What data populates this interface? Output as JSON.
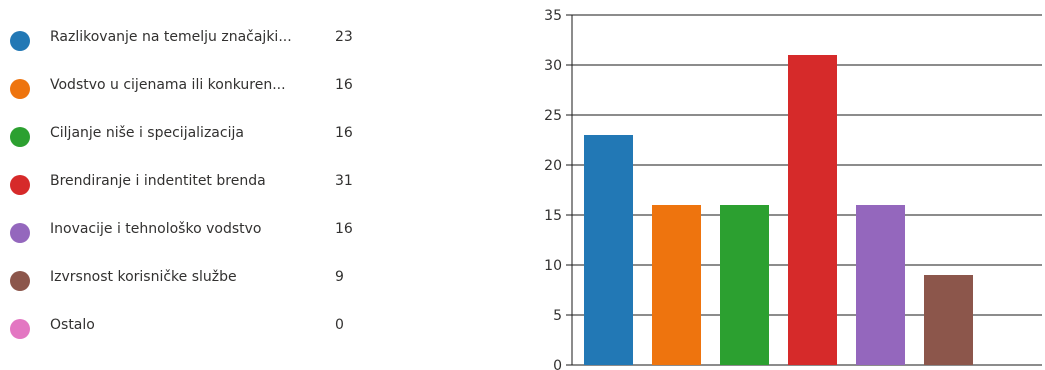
{
  "chart_data": {
    "type": "bar",
    "categories": [
      "Razlikovanje na temelju značajki...",
      "Vodstvo u cijenama ili konkuren...",
      "Ciljanje niše i specijalizacija",
      "Brendiranje i indentitet brenda",
      "Inovacije i tehnološko vodstvo",
      "Izvrsnost korisničke službe",
      "Ostalo"
    ],
    "values": [
      23,
      16,
      16,
      31,
      16,
      9,
      0
    ],
    "colors": [
      "#2278b5",
      "#ee740e",
      "#2ca030",
      "#d62a2a",
      "#9467bd",
      "#8c564b",
      "#e377c2"
    ],
    "ylim": [
      0,
      35
    ],
    "yticks": [
      0,
      5,
      10,
      15,
      20,
      25,
      30,
      35
    ],
    "grid": true,
    "legend": "left",
    "title": "",
    "xlabel": "",
    "ylabel": ""
  }
}
